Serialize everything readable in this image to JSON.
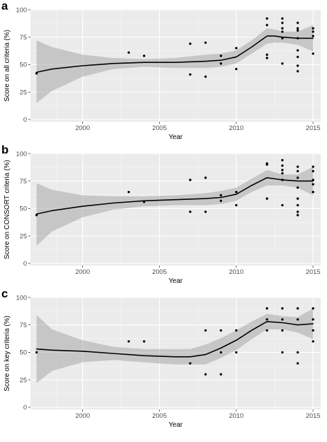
{
  "chart_data": [
    {
      "type": "scatter",
      "panel_label": "a",
      "xlabel": "Year",
      "ylabel": "Score on all criteria (%)",
      "xlim": [
        1996.6,
        2015.5
      ],
      "ylim": [
        -2,
        100
      ],
      "x_ticks": [
        2000,
        2005,
        2010,
        2015
      ],
      "y_ticks": [
        0,
        25,
        50,
        75,
        100
      ],
      "grid": true,
      "points": [
        {
          "x": 1997,
          "y": 42
        },
        {
          "x": 2003,
          "y": 61
        },
        {
          "x": 2004,
          "y": 58
        },
        {
          "x": 2007,
          "y": 69
        },
        {
          "x": 2007,
          "y": 41
        },
        {
          "x": 2008,
          "y": 70
        },
        {
          "x": 2008,
          "y": 39
        },
        {
          "x": 2009,
          "y": 58
        },
        {
          "x": 2009,
          "y": 51
        },
        {
          "x": 2010,
          "y": 65
        },
        {
          "x": 2010,
          "y": 46
        },
        {
          "x": 2012,
          "y": 92
        },
        {
          "x": 2012,
          "y": 86
        },
        {
          "x": 2012,
          "y": 59
        },
        {
          "x": 2012,
          "y": 56
        },
        {
          "x": 2013,
          "y": 92
        },
        {
          "x": 2013,
          "y": 88
        },
        {
          "x": 2013,
          "y": 83
        },
        {
          "x": 2013,
          "y": 80
        },
        {
          "x": 2013,
          "y": 74
        },
        {
          "x": 2013,
          "y": 51
        },
        {
          "x": 2014,
          "y": 88
        },
        {
          "x": 2014,
          "y": 83
        },
        {
          "x": 2014,
          "y": 81
        },
        {
          "x": 2014,
          "y": 74
        },
        {
          "x": 2014,
          "y": 63
        },
        {
          "x": 2014,
          "y": 57
        },
        {
          "x": 2014,
          "y": 49
        },
        {
          "x": 2014,
          "y": 44
        },
        {
          "x": 2015,
          "y": 83
        },
        {
          "x": 2015,
          "y": 80
        },
        {
          "x": 2015,
          "y": 76
        },
        {
          "x": 2015,
          "y": 60
        }
      ],
      "smooth": [
        [
          1997,
          43
        ],
        [
          1998,
          46
        ],
        [
          2000,
          49
        ],
        [
          2002,
          51
        ],
        [
          2004,
          52
        ],
        [
          2006,
          52
        ],
        [
          2008,
          53
        ],
        [
          2009,
          54
        ],
        [
          2010,
          57
        ],
        [
          2011,
          66
        ],
        [
          2012,
          76
        ],
        [
          2012.5,
          76
        ],
        [
          2013,
          75
        ],
        [
          2014,
          74
        ],
        [
          2015,
          74
        ]
      ],
      "band_upper": [
        [
          1997,
          72
        ],
        [
          1998,
          66
        ],
        [
          2000,
          59
        ],
        [
          2002,
          56
        ],
        [
          2004,
          55
        ],
        [
          2006,
          56
        ],
        [
          2008,
          59
        ],
        [
          2009,
          60
        ],
        [
          2010,
          63
        ],
        [
          2011,
          72
        ],
        [
          2012,
          83
        ],
        [
          2012.5,
          82
        ],
        [
          2013,
          80
        ],
        [
          2014,
          80
        ],
        [
          2015,
          86
        ]
      ],
      "band_lower": [
        [
          1997,
          15
        ],
        [
          1998,
          26
        ],
        [
          2000,
          39
        ],
        [
          2002,
          46
        ],
        [
          2004,
          48
        ],
        [
          2006,
          47
        ],
        [
          2008,
          47
        ],
        [
          2009,
          48
        ],
        [
          2010,
          51
        ],
        [
          2011,
          60
        ],
        [
          2012,
          69
        ],
        [
          2012.5,
          70
        ],
        [
          2013,
          70
        ],
        [
          2014,
          68
        ],
        [
          2015,
          62
        ]
      ]
    },
    {
      "type": "scatter",
      "panel_label": "b",
      "xlabel": "Year",
      "ylabel": "Score on CONSORT criteria (%)",
      "xlim": [
        1996.6,
        2015.5
      ],
      "ylim": [
        -2,
        100
      ],
      "x_ticks": [
        2000,
        2005,
        2010,
        2015
      ],
      "y_ticks": [
        0,
        25,
        50,
        75,
        100
      ],
      "grid": true,
      "points": [
        {
          "x": 1997,
          "y": 44
        },
        {
          "x": 2003,
          "y": 65
        },
        {
          "x": 2004,
          "y": 56
        },
        {
          "x": 2007,
          "y": 76
        },
        {
          "x": 2007,
          "y": 47
        },
        {
          "x": 2008,
          "y": 78
        },
        {
          "x": 2008,
          "y": 47
        },
        {
          "x": 2009,
          "y": 62
        },
        {
          "x": 2009,
          "y": 57
        },
        {
          "x": 2010,
          "y": 65
        },
        {
          "x": 2010,
          "y": 53
        },
        {
          "x": 2012,
          "y": 91
        },
        {
          "x": 2012,
          "y": 90
        },
        {
          "x": 2012,
          "y": 59
        },
        {
          "x": 2013,
          "y": 94
        },
        {
          "x": 2013,
          "y": 89
        },
        {
          "x": 2013,
          "y": 85
        },
        {
          "x": 2013,
          "y": 82
        },
        {
          "x": 2013,
          "y": 76
        },
        {
          "x": 2013,
          "y": 53
        },
        {
          "x": 2014,
          "y": 88
        },
        {
          "x": 2014,
          "y": 84
        },
        {
          "x": 2014,
          "y": 78
        },
        {
          "x": 2014,
          "y": 69
        },
        {
          "x": 2014,
          "y": 59
        },
        {
          "x": 2014,
          "y": 53
        },
        {
          "x": 2014,
          "y": 47
        },
        {
          "x": 2014,
          "y": 44
        },
        {
          "x": 2015,
          "y": 88
        },
        {
          "x": 2015,
          "y": 84
        },
        {
          "x": 2015,
          "y": 76
        },
        {
          "x": 2015,
          "y": 72
        },
        {
          "x": 2015,
          "y": 65
        }
      ],
      "smooth": [
        [
          1997,
          45
        ],
        [
          1998,
          48
        ],
        [
          2000,
          52
        ],
        [
          2002,
          55
        ],
        [
          2004,
          57
        ],
        [
          2006,
          58
        ],
        [
          2008,
          59
        ],
        [
          2009,
          60
        ],
        [
          2010,
          63
        ],
        [
          2011,
          71
        ],
        [
          2012,
          78
        ],
        [
          2012.5,
          77
        ],
        [
          2013,
          76
        ],
        [
          2014,
          75
        ],
        [
          2015,
          75
        ]
      ],
      "band_upper": [
        [
          1997,
          73
        ],
        [
          1998,
          67
        ],
        [
          2000,
          62
        ],
        [
          2002,
          61
        ],
        [
          2004,
          61
        ],
        [
          2006,
          62
        ],
        [
          2008,
          64
        ],
        [
          2009,
          66
        ],
        [
          2010,
          69
        ],
        [
          2011,
          77
        ],
        [
          2012,
          85
        ],
        [
          2012.5,
          83
        ],
        [
          2013,
          81
        ],
        [
          2014,
          81
        ],
        [
          2015,
          88
        ]
      ],
      "band_lower": [
        [
          1997,
          16
        ],
        [
          1998,
          29
        ],
        [
          2000,
          42
        ],
        [
          2002,
          49
        ],
        [
          2004,
          52
        ],
        [
          2006,
          53
        ],
        [
          2008,
          53
        ],
        [
          2009,
          54
        ],
        [
          2010,
          57
        ],
        [
          2011,
          65
        ],
        [
          2012,
          71
        ],
        [
          2012.5,
          71
        ],
        [
          2013,
          71
        ],
        [
          2014,
          69
        ],
        [
          2015,
          62
        ]
      ]
    },
    {
      "type": "scatter",
      "panel_label": "c",
      "xlabel": "Year",
      "ylabel": "Score on key criteria (%)",
      "xlim": [
        1996.6,
        2015.5
      ],
      "ylim": [
        -2,
        100
      ],
      "x_ticks": [
        2000,
        2005,
        2010,
        2015
      ],
      "y_ticks": [
        0,
        25,
        50,
        75,
        100
      ],
      "grid": true,
      "points": [
        {
          "x": 1997,
          "y": 50
        },
        {
          "x": 2003,
          "y": 60
        },
        {
          "x": 2004,
          "y": 60
        },
        {
          "x": 2007,
          "y": 40
        },
        {
          "x": 2008,
          "y": 70
        },
        {
          "x": 2008,
          "y": 30
        },
        {
          "x": 2009,
          "y": 70
        },
        {
          "x": 2009,
          "y": 50
        },
        {
          "x": 2009,
          "y": 30
        },
        {
          "x": 2010,
          "y": 70
        },
        {
          "x": 2010,
          "y": 50
        },
        {
          "x": 2012,
          "y": 90
        },
        {
          "x": 2012,
          "y": 80
        },
        {
          "x": 2012,
          "y": 70
        },
        {
          "x": 2013,
          "y": 90
        },
        {
          "x": 2013,
          "y": 80
        },
        {
          "x": 2013,
          "y": 70
        },
        {
          "x": 2013,
          "y": 50
        },
        {
          "x": 2014,
          "y": 90
        },
        {
          "x": 2014,
          "y": 80
        },
        {
          "x": 2014,
          "y": 50
        },
        {
          "x": 2014,
          "y": 40
        },
        {
          "x": 2015,
          "y": 90
        },
        {
          "x": 2015,
          "y": 80
        },
        {
          "x": 2015,
          "y": 70
        },
        {
          "x": 2015,
          "y": 60
        }
      ],
      "smooth": [
        [
          1997,
          53
        ],
        [
          1998,
          52
        ],
        [
          2000,
          51
        ],
        [
          2002,
          49
        ],
        [
          2004,
          47
        ],
        [
          2006,
          46
        ],
        [
          2007,
          46
        ],
        [
          2008,
          48
        ],
        [
          2009,
          54
        ],
        [
          2010,
          61
        ],
        [
          2011,
          70
        ],
        [
          2012,
          78
        ],
        [
          2013,
          77
        ],
        [
          2014,
          75
        ],
        [
          2015,
          76
        ]
      ],
      "band_upper": [
        [
          1997,
          84
        ],
        [
          1998,
          71
        ],
        [
          2000,
          61
        ],
        [
          2002,
          55
        ],
        [
          2004,
          53
        ],
        [
          2006,
          53
        ],
        [
          2007,
          53
        ],
        [
          2008,
          57
        ],
        [
          2009,
          63
        ],
        [
          2010,
          70
        ],
        [
          2011,
          78
        ],
        [
          2012,
          85
        ],
        [
          2013,
          83
        ],
        [
          2014,
          82
        ],
        [
          2015,
          90
        ]
      ],
      "band_lower": [
        [
          1997,
          22
        ],
        [
          1998,
          33
        ],
        [
          2000,
          41
        ],
        [
          2002,
          43
        ],
        [
          2004,
          41
        ],
        [
          2006,
          39
        ],
        [
          2007,
          39
        ],
        [
          2008,
          39
        ],
        [
          2009,
          45
        ],
        [
          2010,
          52
        ],
        [
          2011,
          62
        ],
        [
          2012,
          71
        ],
        [
          2013,
          71
        ],
        [
          2014,
          68
        ],
        [
          2015,
          62
        ]
      ]
    }
  ]
}
